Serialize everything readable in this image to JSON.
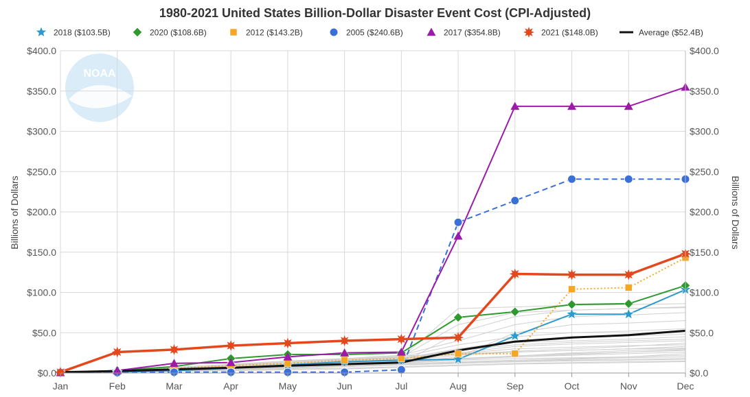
{
  "chart_data": {
    "type": "line",
    "title": "1980-2021 United States Billion-Dollar Disaster Event Cost (CPI-Adjusted)",
    "ylabel": "Billions of Dollars",
    "ylabel_right": "Billions of Dollars",
    "xlabel": "",
    "logo_text": "NOAA",
    "categories": [
      "Jan",
      "Feb",
      "Mar",
      "Apr",
      "May",
      "Jun",
      "Jul",
      "Aug",
      "Sep",
      "Oct",
      "Nov",
      "Dec"
    ],
    "ylim": [
      0,
      400
    ],
    "yticks": [
      0,
      50,
      100,
      150,
      200,
      250,
      300,
      350,
      400
    ],
    "ytick_labels_left": [
      "$0.0",
      "$50.0",
      "$100.0",
      "$150.0",
      "$200.0",
      "$250.0",
      "$300.0",
      "$350.0",
      "$400.0"
    ],
    "ytick_labels_right": [
      "$0.0",
      "$50.0",
      "$100.0",
      "$150.0",
      "$200.0",
      "$250.0",
      "$300.0",
      "$350.0",
      "$400.0"
    ],
    "grid": true,
    "legend_position": "top",
    "series": [
      {
        "name": "2018 ($103.5B)",
        "marker": "star",
        "color": "#2E9ACB",
        "dash": "solid",
        "values": [
          0.5,
          1.0,
          3.0,
          6.0,
          10.0,
          14.0,
          16.0,
          17.0,
          46.0,
          73.0,
          73.0,
          103.5
        ]
      },
      {
        "name": "2020 ($108.6B)",
        "marker": "diamond",
        "color": "#2E9A2E",
        "dash": "solid",
        "values": [
          0.5,
          3.0,
          8.0,
          18.0,
          23.0,
          23.0,
          25.0,
          69.0,
          76.0,
          85.0,
          86.0,
          108.6
        ]
      },
      {
        "name": "2012 ($143.2B)",
        "marker": "square",
        "color": "#F5A623",
        "dash": "dotted",
        "values": [
          0.5,
          1.0,
          6.0,
          9.0,
          12.0,
          16.0,
          18.0,
          24.0,
          24.0,
          104.0,
          106.0,
          143.2
        ]
      },
      {
        "name": "2005 ($240.6B)",
        "marker": "circle",
        "color": "#3A6FD8",
        "dash": "dashed",
        "values": [
          0.5,
          0.5,
          1.0,
          1.0,
          1.0,
          1.0,
          4.0,
          187.0,
          214.0,
          240.6,
          240.6,
          240.6
        ]
      },
      {
        "name": "2017 ($354.8B)",
        "marker": "triangle",
        "color": "#9B1BA8",
        "dash": "solid",
        "values": [
          0.5,
          3.0,
          12.0,
          13.0,
          20.0,
          25.0,
          26.0,
          170.0,
          331.0,
          331.0,
          331.0,
          354.8
        ]
      },
      {
        "name": "2021 ($148.0B)",
        "marker": "burst",
        "color": "#E5471C",
        "dash": "solid",
        "values": [
          1.0,
          26.0,
          29.0,
          34.0,
          37.0,
          40.0,
          42.0,
          44.0,
          123.0,
          122.0,
          122.0,
          148.0
        ]
      },
      {
        "name": "Average ($52.4B)",
        "marker": "none",
        "color": "#111111",
        "dash": "solid",
        "values": [
          1.0,
          2.5,
          4.5,
          6.5,
          9.0,
          11.0,
          13.0,
          28.0,
          39.0,
          44.0,
          47.0,
          52.4
        ]
      }
    ],
    "background_years": [
      [
        0.5,
        1,
        2,
        4,
        6,
        8,
        10,
        12,
        14,
        15,
        16,
        17
      ],
      [
        0.5,
        1,
        3,
        5,
        8,
        10,
        12,
        16,
        18,
        19,
        20,
        22
      ],
      [
        1,
        2,
        4,
        6,
        9,
        12,
        14,
        18,
        20,
        22,
        24,
        26
      ],
      [
        1,
        2,
        4,
        7,
        10,
        13,
        15,
        22,
        26,
        28,
        30,
        31
      ],
      [
        1,
        3,
        5,
        8,
        11,
        14,
        17,
        24,
        30,
        32,
        34,
        35
      ],
      [
        1,
        2,
        5,
        9,
        13,
        16,
        19,
        28,
        35,
        38,
        40,
        42
      ],
      [
        0.5,
        2,
        4,
        7,
        10,
        13,
        18,
        30,
        40,
        44,
        46,
        48
      ],
      [
        1,
        3,
        6,
        10,
        14,
        17,
        20,
        35,
        45,
        50,
        52,
        55
      ],
      [
        1,
        2,
        4,
        6,
        8,
        10,
        12,
        20,
        50,
        60,
        62,
        65
      ],
      [
        1,
        3,
        7,
        11,
        15,
        18,
        22,
        40,
        60,
        70,
        72,
        75
      ],
      [
        0.5,
        2,
        5,
        9,
        13,
        16,
        19,
        80,
        82,
        84,
        85,
        86
      ],
      [
        1,
        2,
        4,
        6,
        8,
        10,
        12,
        50,
        70,
        78,
        80,
        82
      ],
      [
        0.5,
        1,
        3,
        5,
        7,
        9,
        11,
        14,
        16,
        18,
        20,
        24
      ],
      [
        0.5,
        1,
        2,
        3,
        4,
        5,
        7,
        9,
        11,
        12,
        13,
        14
      ],
      [
        1,
        2,
        3,
        5,
        7,
        9,
        11,
        13,
        15,
        17,
        19,
        20
      ],
      [
        0.5,
        2,
        4,
        6,
        9,
        12,
        15,
        18,
        21,
        25,
        28,
        30
      ],
      [
        1,
        3,
        6,
        10,
        14,
        18,
        21,
        24,
        26,
        28,
        30,
        33
      ],
      [
        0.5,
        1,
        2,
        4,
        6,
        9,
        13,
        17,
        21,
        24,
        26,
        28
      ],
      [
        1,
        2,
        3,
        4,
        6,
        8,
        10,
        12,
        14,
        16,
        17,
        18
      ],
      [
        0.5,
        1,
        2,
        3,
        5,
        6,
        8,
        10,
        12,
        13,
        14,
        15
      ],
      [
        1,
        2,
        4,
        7,
        11,
        15,
        19,
        23,
        27,
        30,
        33,
        37
      ],
      [
        0.5,
        1,
        3,
        6,
        9,
        12,
        16,
        30,
        38,
        40,
        42,
        45
      ],
      [
        1,
        2,
        3,
        5,
        8,
        11,
        14,
        25,
        33,
        36,
        38,
        40
      ],
      [
        0.5,
        2,
        4,
        6,
        8,
        11,
        14,
        17,
        20,
        23,
        26,
        29
      ],
      [
        1,
        3,
        5,
        8,
        12,
        16,
        20,
        60,
        75,
        78,
        80,
        81
      ]
    ]
  }
}
